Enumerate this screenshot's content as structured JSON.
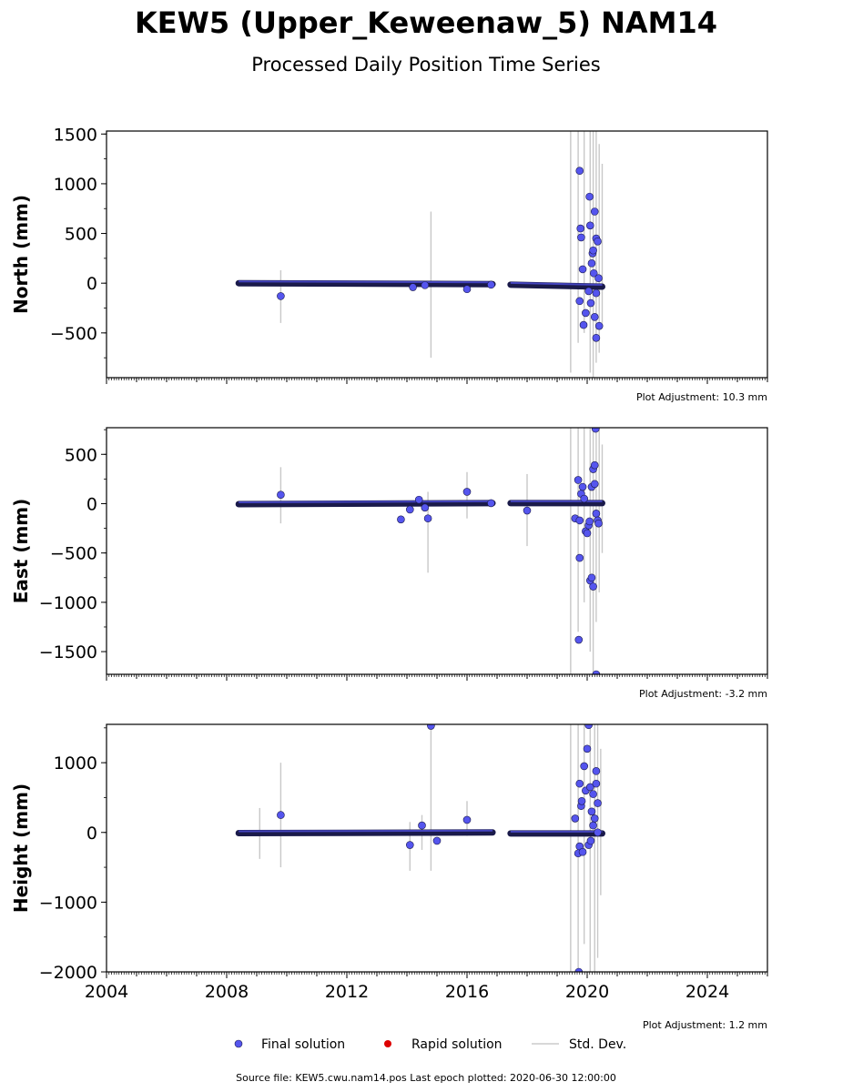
{
  "figure": {
    "title": "KEW5 (Upper_Keweenaw_5) NAM14",
    "subtitle": "Processed Daily Position Time Series",
    "footer": "Source file: KEW5.cwu.nam14.pos  Last epoch plotted: 2020-06-30 12:00:00"
  },
  "legend": {
    "final": "Final solution",
    "rapid": "Rapid solution",
    "stddev": "Std. Dev."
  },
  "colors": {
    "final_fill": "#5555ee",
    "final_edge": "#1a1a4a",
    "rapid": "#dd0000",
    "stddev": "#bbbbbb",
    "axis": "#000000"
  },
  "chart_data": [
    {
      "type": "scatter",
      "ylabel": "North (mm)",
      "adjustment": "Plot Adjustment: 10.3 mm",
      "xlim": [
        2004,
        2026
      ],
      "ylim": [
        -950,
        1530
      ],
      "x_ticks": [
        "2004",
        "2008",
        "2012",
        "2016",
        "2020",
        "2024"
      ],
      "y_ticks": [
        "1500",
        "1000",
        "500",
        "0",
        "−500"
      ],
      "y_tick_values": [
        1500,
        1000,
        500,
        0,
        -500
      ],
      "baseline_segments": [
        [
          2008.4,
          2016.85,
          0,
          -10
        ],
        [
          2017.45,
          2020.5,
          -15,
          -35
        ]
      ],
      "errorbars": [
        [
          2009.8,
          -400,
          130
        ],
        [
          2014.8,
          -750,
          720
        ],
        [
          2019.45,
          -900,
          1530
        ],
        [
          2019.7,
          -600,
          1530
        ],
        [
          2019.9,
          -500,
          1530
        ],
        [
          2020.1,
          -900,
          1530
        ],
        [
          2020.2,
          -950,
          1530
        ],
        [
          2020.3,
          -800,
          1530
        ],
        [
          2020.4,
          -700,
          1400
        ],
        [
          2020.5,
          -400,
          1200
        ]
      ],
      "points": [
        [
          2009.8,
          -130
        ],
        [
          2014.2,
          -40
        ],
        [
          2014.6,
          -20
        ],
        [
          2016.0,
          -60
        ],
        [
          2016.8,
          -15
        ],
        [
          2019.75,
          1130
        ],
        [
          2019.78,
          550
        ],
        [
          2019.8,
          460
        ],
        [
          2019.85,
          140
        ],
        [
          2019.75,
          -180
        ],
        [
          2019.88,
          -420
        ],
        [
          2019.95,
          -300
        ],
        [
          2020.08,
          870
        ],
        [
          2020.1,
          580
        ],
        [
          2020.18,
          300
        ],
        [
          2020.2,
          330
        ],
        [
          2020.15,
          200
        ],
        [
          2020.22,
          100
        ],
        [
          2020.25,
          720
        ],
        [
          2020.3,
          450
        ],
        [
          2020.35,
          420
        ],
        [
          2020.12,
          -200
        ],
        [
          2020.25,
          -340
        ],
        [
          2020.3,
          -550
        ],
        [
          2020.4,
          -430
        ],
        [
          2020.05,
          -80
        ],
        [
          2020.38,
          50
        ],
        [
          2020.3,
          -100
        ]
      ]
    },
    {
      "type": "scatter",
      "ylabel": "East (mm)",
      "adjustment": "Plot Adjustment: -3.2 mm",
      "xlim": [
        2004,
        2026
      ],
      "ylim": [
        -1730,
        770
      ],
      "x_ticks": [
        "2004",
        "2008",
        "2012",
        "2016",
        "2020",
        "2024"
      ],
      "y_ticks": [
        "500",
        "0",
        "−500",
        "−1000",
        "−1500"
      ],
      "y_tick_values": [
        500,
        0,
        -500,
        -1000,
        -1500
      ],
      "baseline_segments": [
        [
          2008.4,
          2016.85,
          -5,
          5
        ],
        [
          2017.45,
          2020.5,
          5,
          5
        ]
      ],
      "errorbars": [
        [
          2009.8,
          -200,
          370
        ],
        [
          2014.7,
          -700,
          120
        ],
        [
          2016.0,
          -150,
          320
        ],
        [
          2018.0,
          -430,
          300
        ],
        [
          2019.45,
          -1730,
          770
        ],
        [
          2019.7,
          -1300,
          770
        ],
        [
          2019.9,
          -1000,
          770
        ],
        [
          2020.1,
          -1500,
          770
        ],
        [
          2020.2,
          -1730,
          770
        ],
        [
          2020.3,
          -1200,
          770
        ],
        [
          2020.4,
          -900,
          770
        ],
        [
          2020.5,
          -500,
          600
        ]
      ],
      "points": [
        [
          2009.8,
          90
        ],
        [
          2013.8,
          -160
        ],
        [
          2014.1,
          -60
        ],
        [
          2014.4,
          40
        ],
        [
          2014.7,
          -150
        ],
        [
          2014.6,
          -40
        ],
        [
          2016.0,
          120
        ],
        [
          2016.8,
          5
        ],
        [
          2018.0,
          -70
        ],
        [
          2019.7,
          240
        ],
        [
          2019.8,
          100
        ],
        [
          2019.85,
          170
        ],
        [
          2019.9,
          50
        ],
        [
          2019.6,
          -150
        ],
        [
          2019.75,
          -170
        ],
        [
          2019.75,
          -550
        ],
        [
          2019.72,
          -1380
        ],
        [
          2019.95,
          -280
        ],
        [
          2020.0,
          -300
        ],
        [
          2020.05,
          -220
        ],
        [
          2020.1,
          -780
        ],
        [
          2020.15,
          -750
        ],
        [
          2020.08,
          -180
        ],
        [
          2020.15,
          170
        ],
        [
          2020.2,
          350
        ],
        [
          2020.25,
          390
        ],
        [
          2020.25,
          200
        ],
        [
          2020.3,
          -100
        ],
        [
          2020.35,
          -170
        ],
        [
          2020.38,
          -200
        ],
        [
          2020.2,
          -840
        ],
        [
          2020.28,
          760
        ],
        [
          2020.3,
          -1730
        ]
      ]
    },
    {
      "type": "scatter",
      "ylabel": "Height (mm)",
      "adjustment": "Plot Adjustment: 1.2 mm",
      "xlim": [
        2004,
        2026
      ],
      "ylim": [
        -2000,
        1550
      ],
      "x_ticks": [
        "2004",
        "2008",
        "2012",
        "2016",
        "2020",
        "2024"
      ],
      "y_ticks": [
        "1000",
        "0",
        "−1000",
        "−2000"
      ],
      "y_tick_values": [
        1000,
        0,
        -1000,
        -2000
      ],
      "baseline_segments": [
        [
          2008.4,
          2016.85,
          -10,
          0
        ],
        [
          2017.45,
          2020.5,
          -15,
          -15
        ]
      ],
      "errorbars": [
        [
          2009.1,
          -380,
          350
        ],
        [
          2009.8,
          -500,
          1000
        ],
        [
          2014.1,
          -550,
          150
        ],
        [
          2014.5,
          -250,
          250
        ],
        [
          2014.8,
          -550,
          1550
        ],
        [
          2016.0,
          -50,
          450
        ],
        [
          2019.45,
          -2000,
          1550
        ],
        [
          2019.7,
          -2000,
          1550
        ],
        [
          2019.9,
          -1600,
          1550
        ],
        [
          2020.1,
          -2000,
          1550
        ],
        [
          2020.25,
          -2000,
          1550
        ],
        [
          2020.35,
          -1800,
          1550
        ],
        [
          2020.45,
          -900,
          1200
        ]
      ],
      "points": [
        [
          2009.8,
          250
        ],
        [
          2014.1,
          -180
        ],
        [
          2014.5,
          100
        ],
        [
          2014.8,
          1530
        ],
        [
          2015.0,
          -120
        ],
        [
          2016.0,
          180
        ],
        [
          2019.6,
          200
        ],
        [
          2019.75,
          700
        ],
        [
          2019.8,
          380
        ],
        [
          2019.82,
          450
        ],
        [
          2019.75,
          -200
        ],
        [
          2019.7,
          -300
        ],
        [
          2019.85,
          -280
        ],
        [
          2019.9,
          950
        ],
        [
          2019.95,
          600
        ],
        [
          2020.0,
          1200
        ],
        [
          2020.05,
          1540
        ],
        [
          2020.1,
          650
        ],
        [
          2020.15,
          300
        ],
        [
          2020.2,
          550
        ],
        [
          2020.25,
          200
        ],
        [
          2020.3,
          880
        ],
        [
          2020.3,
          700
        ],
        [
          2020.35,
          420
        ],
        [
          2020.05,
          -180
        ],
        [
          2020.12,
          -120
        ],
        [
          2019.72,
          -2000
        ],
        [
          2020.2,
          100
        ],
        [
          2020.35,
          0
        ]
      ]
    }
  ]
}
